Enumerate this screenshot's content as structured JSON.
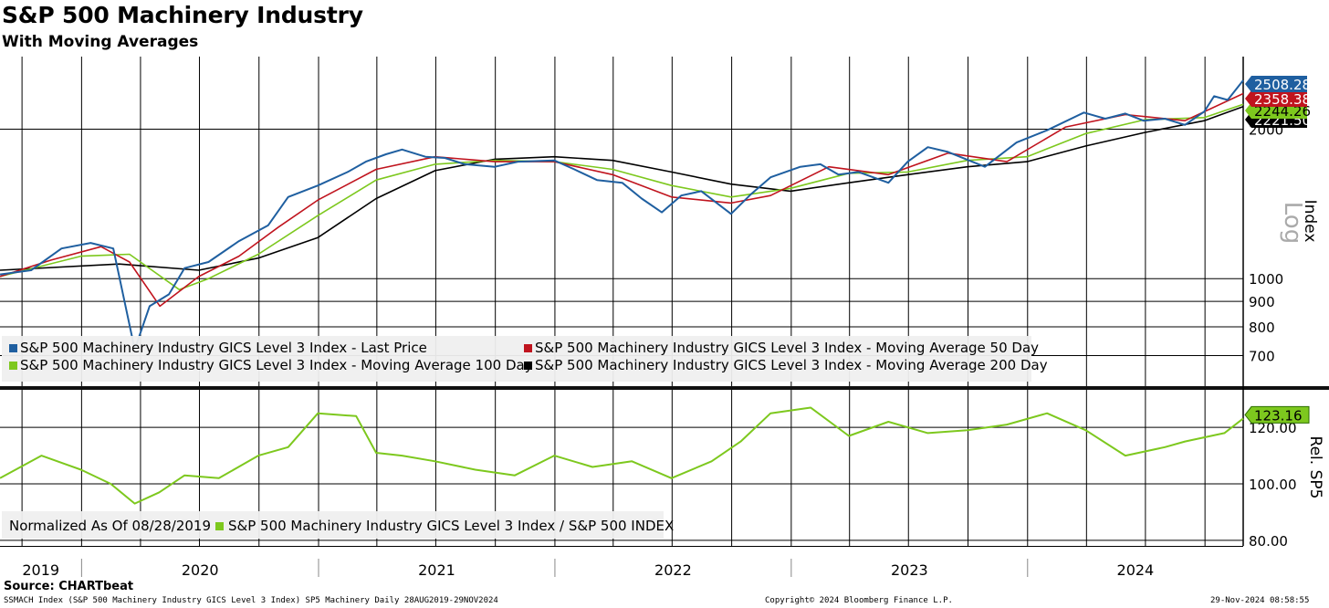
{
  "title": "S&P 500 Machinery Industry",
  "subtitle": "With Moving Averages",
  "source": "Source: CHARTbeat",
  "footer": {
    "left": "SSMACH Index (S&P 500 Machinery Industry GICS Level 3 Index) SP5 Machinery  Daily 28AUG2019-29NOV2024",
    "center": "Copyright© 2024 Bloomberg Finance L.P.",
    "right": "29-Nov-2024 08:58:55"
  },
  "colors": {
    "last": "#1f5fa0",
    "ma50": "#c0141e",
    "ma100": "#7dc81e",
    "ma200": "#000000",
    "rel": "#7dc81e"
  },
  "chart_data": [
    {
      "type": "line",
      "ylabel": "Index",
      "scale": "log",
      "scale_label": "Log",
      "ylim": [
        610,
        2800
      ],
      "y_ticks": [
        700,
        800,
        900,
        1000,
        2000
      ],
      "x_ticks": [
        "2019",
        "2020",
        "2021",
        "2022",
        "2023",
        "2024"
      ],
      "xlim": [
        "2019-08-28",
        "2024-11-29"
      ],
      "legend": "bottom-left",
      "grid": true,
      "last_values": [
        {
          "label": "2508.28",
          "value": 2508.28,
          "series": "last"
        },
        {
          "label": "2358.38",
          "value": 2358.38,
          "series": "ma50"
        },
        {
          "label": "2244.26",
          "value": 2244.26,
          "series": "ma100"
        },
        {
          "label": "2221.50",
          "value": 2221.5,
          "series": "ma200"
        }
      ],
      "series": [
        {
          "id": "last",
          "name": "S&P 500 Machinery Industry GICS Level 3 Index - Last Price",
          "x": [
            "2019-08-28",
            "2019-10-15",
            "2019-12-01",
            "2020-01-15",
            "2020-02-19",
            "2020-03-23",
            "2020-04-15",
            "2020-05-15",
            "2020-06-08",
            "2020-07-15",
            "2020-08-31",
            "2020-10-15",
            "2020-11-15",
            "2020-12-31",
            "2021-02-15",
            "2021-03-15",
            "2021-04-15",
            "2021-05-10",
            "2021-06-15",
            "2021-07-15",
            "2021-08-15",
            "2021-09-30",
            "2021-11-05",
            "2021-12-31",
            "2022-01-31",
            "2022-03-07",
            "2022-04-15",
            "2022-05-15",
            "2022-06-15",
            "2022-07-15",
            "2022-08-15",
            "2022-09-30",
            "2022-10-31",
            "2022-11-30",
            "2023-01-15",
            "2023-02-15",
            "2023-03-15",
            "2023-04-15",
            "2023-05-31",
            "2023-06-30",
            "2023-07-31",
            "2023-08-31",
            "2023-10-27",
            "2023-12-15",
            "2024-01-31",
            "2024-03-28",
            "2024-04-30",
            "2024-05-31",
            "2024-06-28",
            "2024-07-31",
            "2024-08-31",
            "2024-09-30",
            "2024-10-15",
            "2024-11-05",
            "2024-11-29"
          ],
          "y": [
            1020,
            1040,
            1150,
            1180,
            1150,
            720,
            880,
            930,
            1050,
            1080,
            1190,
            1280,
            1460,
            1540,
            1640,
            1720,
            1780,
            1820,
            1760,
            1750,
            1700,
            1680,
            1720,
            1730,
            1660,
            1580,
            1560,
            1450,
            1360,
            1470,
            1500,
            1350,
            1480,
            1600,
            1680,
            1700,
            1620,
            1640,
            1560,
            1720,
            1840,
            1800,
            1680,
            1880,
            1990,
            2160,
            2100,
            2150,
            2080,
            2100,
            2040,
            2170,
            2330,
            2290,
            2508.28
          ]
        },
        {
          "id": "ma50",
          "name": "S&P 500 Machinery Industry GICS Level 3 Index - Moving Average 50 Day",
          "x": [
            "2019-08-28",
            "2019-11-15",
            "2020-01-31",
            "2020-03-15",
            "2020-05-01",
            "2020-06-30",
            "2020-08-31",
            "2020-10-31",
            "2020-12-31",
            "2021-03-31",
            "2021-06-30",
            "2021-09-30",
            "2021-12-31",
            "2022-03-31",
            "2022-06-30",
            "2022-09-30",
            "2022-11-30",
            "2023-02-28",
            "2023-05-31",
            "2023-08-31",
            "2023-11-30",
            "2024-02-29",
            "2024-05-31",
            "2024-08-31",
            "2024-11-29"
          ],
          "y": [
            1010,
            1090,
            1160,
            1080,
            880,
            1010,
            1110,
            1270,
            1440,
            1660,
            1760,
            1720,
            1720,
            1620,
            1460,
            1420,
            1470,
            1680,
            1620,
            1790,
            1720,
            2020,
            2140,
            2080,
            2358.38
          ]
        },
        {
          "id": "ma100",
          "name": "S&P 500 Machinery Industry GICS Level 3 Index - Moving Average 100 Day",
          "x": [
            "2019-08-28",
            "2019-12-31",
            "2020-03-15",
            "2020-05-31",
            "2020-07-15",
            "2020-09-30",
            "2020-12-31",
            "2021-03-31",
            "2021-06-30",
            "2021-09-30",
            "2021-12-31",
            "2022-03-31",
            "2022-06-30",
            "2022-09-30",
            "2022-12-31",
            "2023-03-31",
            "2023-06-30",
            "2023-09-30",
            "2023-12-31",
            "2024-03-31",
            "2024-06-30",
            "2024-09-30",
            "2024-11-29"
          ],
          "y": [
            1010,
            1110,
            1120,
            950,
            1000,
            1120,
            1340,
            1580,
            1700,
            1730,
            1720,
            1660,
            1540,
            1460,
            1520,
            1630,
            1640,
            1730,
            1760,
            1960,
            2090,
            2110,
            2244.26
          ]
        },
        {
          "id": "ma200",
          "name": "S&P 500 Machinery Industry GICS Level 3 Index - Moving Average 200 Day",
          "x": [
            "2019-08-28",
            "2020-02-28",
            "2020-06-30",
            "2020-09-30",
            "2020-12-31",
            "2021-03-31",
            "2021-06-30",
            "2021-09-30",
            "2021-12-31",
            "2022-03-31",
            "2022-06-30",
            "2022-09-30",
            "2022-12-31",
            "2023-03-31",
            "2023-06-30",
            "2023-09-30",
            "2023-12-31",
            "2024-03-31",
            "2024-06-30",
            "2024-09-30",
            "2024-11-29"
          ],
          "y": [
            1040,
            1070,
            1040,
            1100,
            1210,
            1450,
            1650,
            1740,
            1760,
            1730,
            1640,
            1550,
            1500,
            1560,
            1620,
            1680,
            1720,
            1850,
            1970,
            2080,
            2221.5
          ]
        }
      ]
    },
    {
      "type": "line",
      "ylabel": "Rel. SP5",
      "ylim": [
        78,
        133
      ],
      "y_ticks": [
        {
          "value": 80,
          "label": "80.00"
        },
        {
          "value": 100,
          "label": "100.00"
        },
        {
          "value": 120,
          "label": "120.00"
        }
      ],
      "normalized_note": "Normalized As Of 08/28/2019",
      "last_value": {
        "label": "123.16",
        "value": 123.16
      },
      "series": [
        {
          "id": "rel",
          "name": "S&P 500 Machinery Industry GICS Level 3 Index / S&P 500 INDEX",
          "x": [
            "2019-08-28",
            "2019-10-31",
            "2019-12-31",
            "2020-02-15",
            "2020-03-23",
            "2020-04-30",
            "2020-06-08",
            "2020-07-31",
            "2020-09-30",
            "2020-11-15",
            "2020-12-31",
            "2021-02-28",
            "2021-03-31",
            "2021-05-10",
            "2021-06-30",
            "2021-08-31",
            "2021-10-31",
            "2021-12-31",
            "2022-02-28",
            "2022-04-30",
            "2022-06-30",
            "2022-08-31",
            "2022-10-15",
            "2022-11-30",
            "2023-01-31",
            "2023-03-31",
            "2023-05-31",
            "2023-07-31",
            "2023-09-30",
            "2023-11-30",
            "2024-01-31",
            "2024-03-31",
            "2024-05-31",
            "2024-07-31",
            "2024-08-31",
            "2024-10-31",
            "2024-11-29"
          ],
          "y": [
            102,
            110,
            105,
            100,
            93,
            97,
            103,
            102,
            110,
            113,
            125,
            124,
            111,
            110,
            108,
            105,
            103,
            110,
            106,
            108,
            102,
            108,
            115,
            125,
            127,
            117,
            122,
            118,
            119,
            121,
            125,
            119,
            110,
            113,
            115,
            118,
            123.16
          ]
        }
      ]
    }
  ]
}
